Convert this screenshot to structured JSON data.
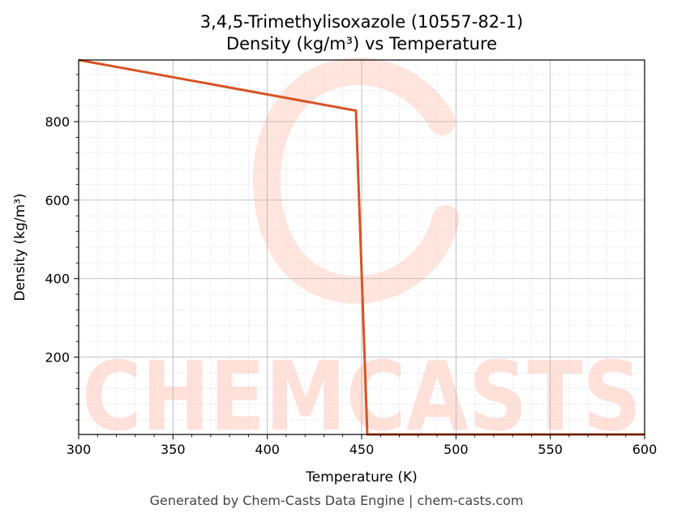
{
  "chart_data": {
    "type": "line",
    "title": [
      "3,4,5-Trimethylisoxazole (10557-82-1)",
      "Density (kg/m³) vs Temperature"
    ],
    "xlabel": "Temperature (K)",
    "ylabel": "Density (kg/m³)",
    "xlim": [
      300,
      600
    ],
    "ylim": [
      3,
      957
    ],
    "xticks": [
      300,
      350,
      400,
      450,
      500,
      550,
      600
    ],
    "yticks": [
      200,
      400,
      600,
      800
    ],
    "grid": true,
    "series": [
      {
        "color": "#d65424",
        "x": [
          300,
          447,
          453,
          600
        ],
        "y": [
          957,
          828,
          3,
          3
        ]
      }
    ]
  },
  "watermark": {
    "text": "CHEMCASTS",
    "color": "#ffdcd3"
  },
  "footer": "Generated by Chem-Casts Data Engine | chem-casts.com"
}
